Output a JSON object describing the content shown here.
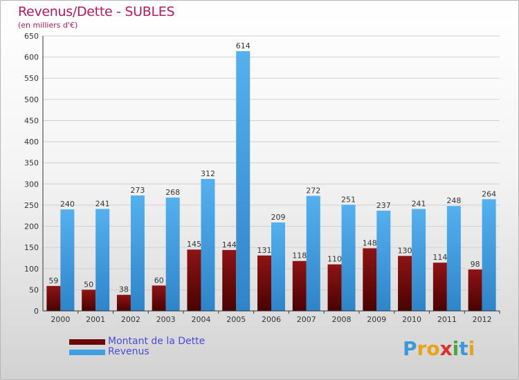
{
  "title": "Revenus/Dette - SUBLES",
  "subtitle": "(en milliers d'€)",
  "colors": {
    "title": "#b3195e",
    "debt": "#7a0c0c",
    "revenue": "#3f9fe3",
    "legend_text": "#4a4adb"
  },
  "legend": {
    "debt_label": "Montant de la Dette",
    "revenue_label": "Revenus"
  },
  "logo": {
    "letters": [
      {
        "ch": "P",
        "color": "#3a9ad9"
      },
      {
        "ch": "r",
        "color": "#e8a317"
      },
      {
        "ch": "o",
        "color": "#e8a317"
      },
      {
        "ch": "x",
        "color": "#d93030"
      },
      {
        "ch": "i",
        "color": "#48a83c"
      },
      {
        "ch": "t",
        "color": "#3a9ad9"
      },
      {
        "ch": "i",
        "color": "#e8a317"
      }
    ]
  },
  "chart_data": {
    "type": "bar",
    "title": "Revenus/Dette - SUBLES",
    "subtitle": "(en milliers d'€)",
    "categories": [
      "2000",
      "2001",
      "2002",
      "2003",
      "2004",
      "2005",
      "2006",
      "2007",
      "2008",
      "2009",
      "2010",
      "2011",
      "2012"
    ],
    "series": [
      {
        "name": "Montant de la Dette",
        "values": [
          59,
          50,
          38,
          60,
          145,
          144,
          131,
          118,
          110,
          148,
          130,
          114,
          98
        ]
      },
      {
        "name": "Revenus",
        "values": [
          240,
          241,
          273,
          268,
          312,
          614,
          209,
          272,
          251,
          237,
          241,
          248,
          264
        ]
      }
    ],
    "ylim": [
      0,
      650
    ],
    "yticks": [
      0,
      50,
      100,
      150,
      200,
      250,
      300,
      350,
      400,
      450,
      500,
      550,
      600,
      650
    ],
    "grid": true,
    "legend": "bottom-left"
  }
}
